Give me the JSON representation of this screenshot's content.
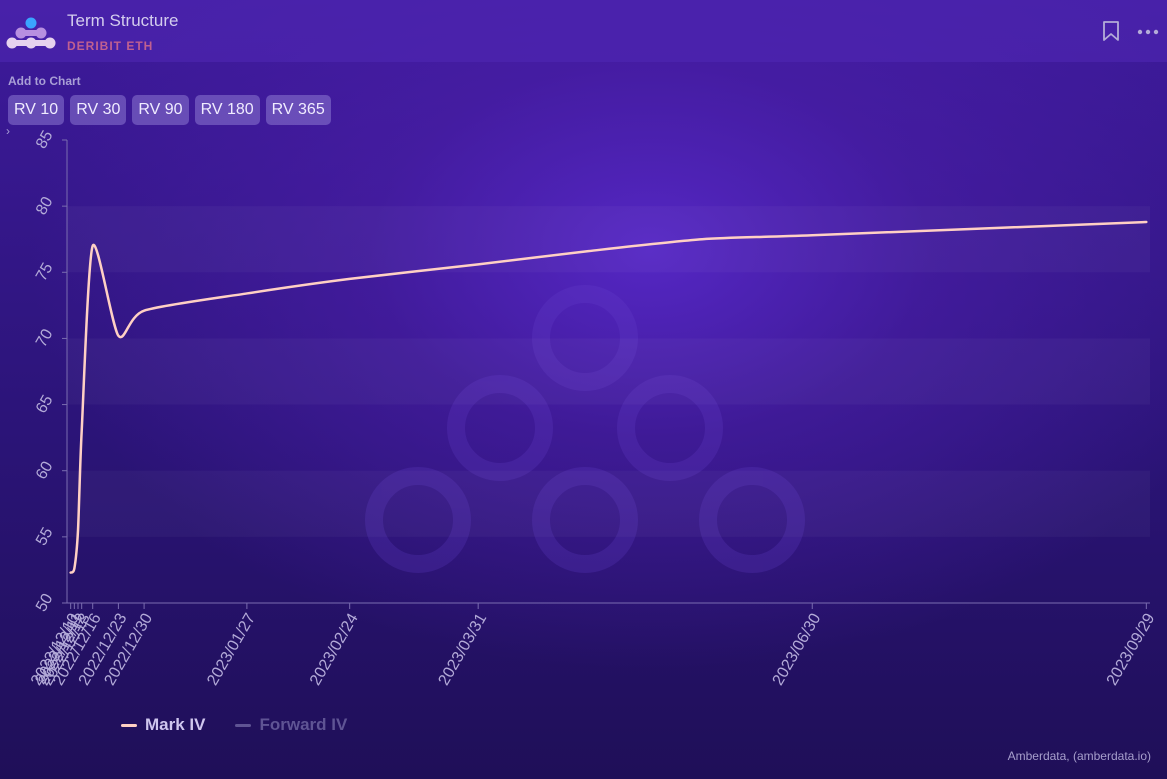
{
  "header": {
    "title": "Term Structure",
    "subtitle": "DERIBIT ETH",
    "logo_icon": "amberdata-logo-icon",
    "bookmark_icon": "bookmark-icon",
    "more_icon": "more-dots-icon"
  },
  "toolbar": {
    "add_label": "Add to Chart",
    "buttons": [
      "RV 10",
      "RV 30",
      "RV 90",
      "RV 180",
      "RV 365"
    ],
    "expand_glyph": "›"
  },
  "footer": {
    "credit": "Amberdata, (amberdata.io)"
  },
  "colors": {
    "mark_iv": "#ffd0c4",
    "forward_iv": "#8a80b8",
    "accent": "#c06090"
  },
  "chart_data": {
    "type": "line",
    "title": "",
    "xlabel": "",
    "ylabel": "",
    "ylim": [
      50,
      85
    ],
    "yticks": [
      50,
      55,
      60,
      65,
      70,
      75,
      80,
      85
    ],
    "x_axis_type": "date",
    "x_range": [
      "2022-12-09",
      "2023-09-30"
    ],
    "x_ticks": [
      "2022/12/10",
      "2022/12/11",
      "2022/12/12",
      "2022/12/13",
      "2022/12/16",
      "2022/12/23",
      "2022/12/30",
      "2023/01/27",
      "2023/02/24",
      "2023/03/31",
      "2023/06/30",
      "2023/09/29"
    ],
    "grid": "horizontal-bands",
    "legend": "bottom-left",
    "series": [
      {
        "name": "Mark IV",
        "x": [
          "2022-12-10",
          "2022-12-11",
          "2022-12-12",
          "2022-12-13",
          "2022-12-16",
          "2022-12-23",
          "2022-12-30",
          "2023-01-27",
          "2023-02-24",
          "2023-03-31",
          "2023-04-30",
          "2023-05-31",
          "2023-06-30",
          "2023-09-29"
        ],
        "values": [
          52.3,
          52.6,
          55.5,
          63.0,
          77.0,
          70.2,
          72.1,
          73.4,
          74.5,
          75.6,
          76.6,
          77.5,
          77.8,
          78.8
        ],
        "visible": true
      },
      {
        "name": "Forward IV",
        "x": [],
        "values": [],
        "visible": false
      }
    ]
  }
}
